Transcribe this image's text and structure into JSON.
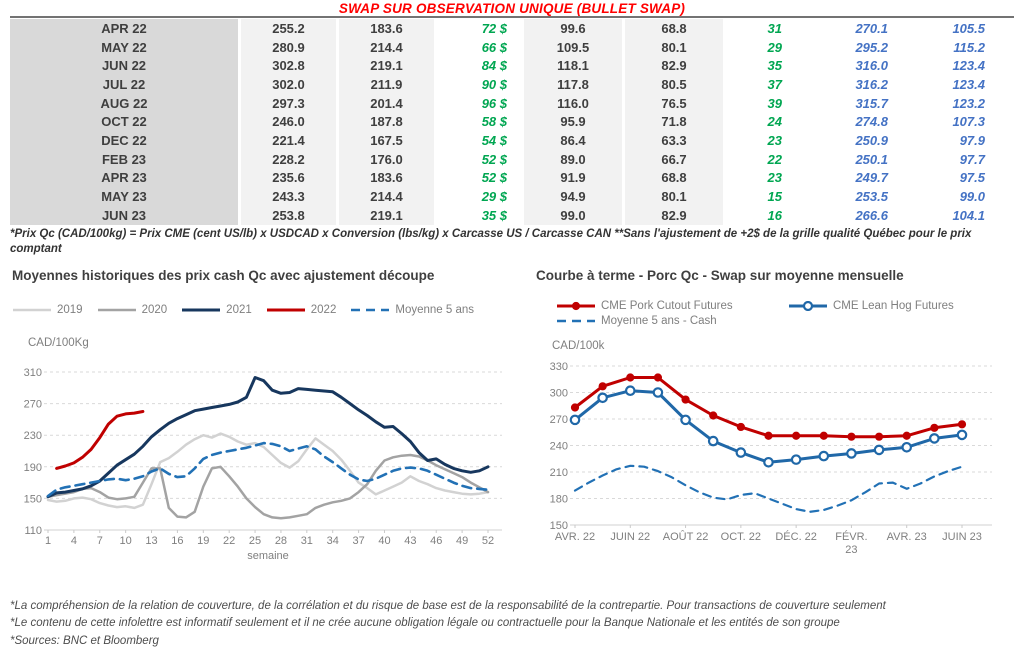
{
  "title": "SWAP SUR OBSERVATION UNIQUE (BULLET SWAP)",
  "table": {
    "rows": [
      [
        "APR 22",
        "255.2",
        "183.6",
        "72 $",
        "99.6",
        "68.8",
        "31",
        "270.1",
        "105.5"
      ],
      [
        "MAY 22",
        "280.9",
        "214.4",
        "66 $",
        "109.5",
        "80.1",
        "29",
        "295.2",
        "115.2"
      ],
      [
        "JUN 22",
        "302.8",
        "219.1",
        "84 $",
        "118.1",
        "82.9",
        "35",
        "316.0",
        "123.4"
      ],
      [
        "JUL 22",
        "302.0",
        "211.9",
        "90 $",
        "117.8",
        "80.5",
        "37",
        "316.2",
        "123.4"
      ],
      [
        "AUG 22",
        "297.3",
        "201.4",
        "96 $",
        "116.0",
        "76.5",
        "39",
        "315.7",
        "123.2"
      ],
      [
        "OCT 22",
        "246.0",
        "187.8",
        "58 $",
        "95.9",
        "71.8",
        "24",
        "274.8",
        "107.3"
      ],
      [
        "DEC 22",
        "221.4",
        "167.5",
        "54 $",
        "86.4",
        "63.3",
        "23",
        "250.9",
        "97.9"
      ],
      [
        "FEB 23",
        "228.2",
        "176.0",
        "52 $",
        "89.0",
        "66.7",
        "22",
        "250.1",
        "97.7"
      ],
      [
        "APR 23",
        "235.6",
        "183.6",
        "52 $",
        "91.9",
        "68.8",
        "23",
        "249.7",
        "97.5"
      ],
      [
        "MAY 23",
        "243.3",
        "214.4",
        "29 $",
        "94.9",
        "80.1",
        "15",
        "253.5",
        "99.0"
      ],
      [
        "JUN 23",
        "253.8",
        "219.1",
        "35 $",
        "99.0",
        "82.9",
        "16",
        "266.6",
        "104.1"
      ]
    ],
    "footnote": "*Prix Qc (CAD/100kg) = Prix CME (cent US/lb) x USDCAD x Conversion (lbs/kg) x Carcasse US / Carcasse CAN **Sans l'ajustement de +2$ de la grille qualité Québec pour le prix comptant"
  },
  "colors": {
    "title_red": "#ff0000",
    "green_text": "#00a651",
    "blue_text": "#4472c4",
    "navy_line": "#17375e",
    "red_line": "#c00000",
    "dashed_blue": "#2271b5",
    "gray_2020": "#a3a3a3",
    "lightgray_2019": "#d2d2d2"
  },
  "chart_data": [
    {
      "type": "line",
      "title": "Moyennes historiques des prix cash Qc avec ajustement découpe",
      "ylabel": "CAD/100Kg",
      "xlabel": "semaine",
      "ylim": [
        110,
        310
      ],
      "y_step": 40,
      "xlim": [
        1,
        52
      ],
      "x_ticks": [
        1,
        4,
        7,
        10,
        13,
        16,
        19,
        22,
        25,
        28,
        31,
        34,
        37,
        40,
        43,
        46,
        49,
        52
      ],
      "grid": true,
      "legend_position": "top",
      "series": [
        {
          "name": "2019",
          "color": "#d2d2d2",
          "width": 2.5,
          "x_start": 1,
          "x_step": 1,
          "values": [
            148,
            146,
            147,
            150,
            151,
            149,
            144,
            141,
            139,
            140,
            138,
            142,
            168,
            196,
            201,
            209,
            218,
            225,
            230,
            227,
            232,
            228,
            222,
            218,
            220,
            215,
            205,
            195,
            189,
            197,
            212,
            226,
            218,
            210,
            199,
            185,
            170,
            163,
            155,
            160,
            165,
            170,
            178,
            172,
            168,
            163,
            160,
            158,
            156,
            155,
            156,
            158
          ]
        },
        {
          "name": "2020",
          "color": "#a3a3a3",
          "width": 2.5,
          "x_start": 1,
          "x_step": 1,
          "values": [
            152,
            154,
            156,
            158,
            162,
            163,
            158,
            151,
            149,
            150,
            152,
            170,
            188,
            188,
            138,
            127,
            126,
            133,
            165,
            188,
            190,
            178,
            165,
            150,
            139,
            130,
            126,
            125,
            126,
            128,
            130,
            138,
            142,
            145,
            147,
            150,
            158,
            168,
            185,
            198,
            202,
            204,
            205,
            203,
            198,
            192,
            187,
            182,
            177,
            170,
            164,
            158
          ]
        },
        {
          "name": "2021",
          "color": "#17375e",
          "width": 3,
          "x_start": 1,
          "x_step": 1,
          "values": [
            152,
            157,
            158,
            160,
            162,
            166,
            172,
            182,
            192,
            199,
            206,
            216,
            228,
            237,
            245,
            251,
            256,
            261,
            263,
            265,
            267,
            269,
            272,
            278,
            303,
            299,
            287,
            283,
            284,
            289,
            288,
            287,
            286,
            285,
            278,
            270,
            262,
            255,
            247,
            240,
            241,
            232,
            222,
            208,
            198,
            200,
            193,
            188,
            185,
            183,
            185,
            190
          ]
        },
        {
          "name": "2022",
          "color": "#c00000",
          "width": 3,
          "x_start": 1,
          "x_step": 1,
          "values": [
            null,
            188,
            191,
            195,
            202,
            212,
            227,
            244,
            254,
            257,
            258,
            260,
            null,
            null,
            null,
            null,
            null,
            null,
            null,
            null,
            null,
            null,
            null,
            null,
            null,
            null,
            null,
            null,
            null,
            null,
            null,
            null,
            null,
            null,
            null,
            null,
            null,
            null,
            null,
            null,
            null,
            null,
            null,
            null,
            null,
            null,
            null,
            null,
            null,
            null,
            null,
            null
          ]
        },
        {
          "name": "Moyenne 5 ans",
          "color": "#2271b5",
          "width": 2.6,
          "dash": "9 6",
          "x_start": 1,
          "x_step": 1,
          "values": [
            153,
            161,
            164,
            166,
            168,
            170,
            172,
            174,
            175,
            173,
            175,
            178,
            184,
            188,
            181,
            177,
            178,
            188,
            200,
            205,
            208,
            210,
            212,
            214,
            217,
            220,
            219,
            216,
            210,
            213,
            216,
            212,
            203,
            196,
            188,
            180,
            174,
            172,
            175,
            180,
            185,
            188,
            189,
            188,
            185,
            180,
            175,
            170,
            166,
            163,
            162,
            161
          ]
        }
      ]
    },
    {
      "type": "line",
      "title": "Courbe à terme - Porc Qc - Swap sur moyenne mensuelle",
      "ylabel": "CAD/100k",
      "xlabel": "",
      "ylim": [
        150,
        330
      ],
      "y_step": 30,
      "xlim": [
        0,
        14
      ],
      "x_tick_positions": [
        0,
        2,
        4,
        6,
        8,
        10,
        12,
        14
      ],
      "x_tick_labels": [
        "AVR. 22",
        "JUIN 22",
        "AOÛT 22",
        "OCT. 22",
        "DÉC. 22",
        "FÉVR.|23",
        "AVR. 23",
        "JUIN 23"
      ],
      "grid": true,
      "legend_position": "top",
      "series": [
        {
          "name": "CME Pork Cutout Futures",
          "color": "#c00000",
          "width": 3,
          "marker": "filled-circle",
          "x_start": 0,
          "x_step": 1,
          "values": [
            283,
            307,
            317,
            317,
            292,
            274,
            261,
            251,
            251,
            251,
            250,
            250,
            251,
            260,
            264
          ]
        },
        {
          "name": "CME Lean Hog Futures",
          "color": "#2068a8",
          "width": 3,
          "marker": "open-circle",
          "x_start": 0,
          "x_step": 1,
          "values": [
            269,
            294,
            302,
            300,
            269,
            245,
            232,
            221,
            224,
            228,
            231,
            235,
            238,
            248,
            252
          ]
        },
        {
          "name": "Moyenne 5 ans - Cash",
          "color": "#2271b5",
          "width": 2.2,
          "dash": "8 6",
          "x_start": 0,
          "x_step": 0.5,
          "values": [
            189,
            198,
            206,
            213,
            217,
            216,
            211,
            204,
            195,
            187,
            181,
            179,
            184,
            186,
            180,
            174,
            168,
            165,
            167,
            172,
            178,
            187,
            197,
            198,
            191,
            197,
            205,
            211,
            216
          ]
        }
      ]
    }
  ],
  "footer": {
    "lines": [
      "*La compréhension de la relation de couverture, de la corrélation et du risque de base est de la responsabilité de la contrepartie. Pour transactions de couverture seulement",
      "*Le contenu de cette infolettre est informatif seulement et il ne crée aucune obligation légale ou contractuelle pour la Banque Nationale et les entités de son groupe",
      "*Sources: BNC et Bloomberg"
    ]
  }
}
